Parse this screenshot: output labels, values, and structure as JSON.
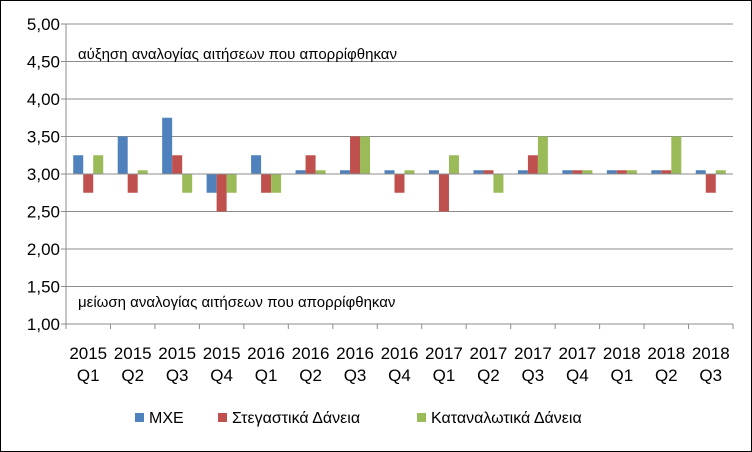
{
  "chart_data": {
    "type": "bar",
    "title": "",
    "xlabel": "",
    "ylabel": "",
    "ylim": [
      1.0,
      5.0
    ],
    "ytick_step": 0.5,
    "grid": true,
    "legend_position": "bottom",
    "baseline": 3.0,
    "categories": [
      [
        "2015",
        "Q1"
      ],
      [
        "2015",
        "Q2"
      ],
      [
        "2015",
        "Q3"
      ],
      [
        "2015",
        "Q4"
      ],
      [
        "2016",
        "Q1"
      ],
      [
        "2016",
        "Q2"
      ],
      [
        "2016",
        "Q3"
      ],
      [
        "2016",
        "Q4"
      ],
      [
        "2017",
        "Q1"
      ],
      [
        "2017",
        "Q2"
      ],
      [
        "2017",
        "Q3"
      ],
      [
        "2017",
        "Q4"
      ],
      [
        "2018",
        "Q1"
      ],
      [
        "2018",
        "Q2"
      ],
      [
        "2018",
        "Q3"
      ]
    ],
    "series": [
      {
        "name": "ΜΧΕ",
        "color": "#4F81BD",
        "values": [
          3.25,
          3.5,
          3.75,
          2.75,
          3.25,
          3.05,
          3.05,
          3.05,
          3.05,
          3.05,
          3.05,
          3.05,
          3.05,
          3.05,
          3.05
        ]
      },
      {
        "name": "Στεγαστικά Δάνεια",
        "color": "#C0504D",
        "values": [
          2.75,
          2.75,
          3.25,
          2.5,
          2.75,
          3.25,
          3.5,
          2.75,
          2.5,
          3.05,
          3.25,
          3.05,
          3.05,
          3.05,
          2.75
        ]
      },
      {
        "name": "Καταναλωτικά Δάνεια",
        "color": "#9BBB59",
        "values": [
          3.25,
          3.05,
          2.75,
          2.75,
          2.75,
          3.05,
          3.5,
          3.05,
          3.25,
          2.75,
          3.5,
          3.05,
          3.05,
          3.5,
          3.05
        ]
      }
    ],
    "annotations": {
      "top": "αύξηση αναλογίας αιτήσεων που απορρίφθηκαν",
      "bottom": "μείωση αναλογίας αιτήσεων που απορρίφθηκαν"
    }
  }
}
